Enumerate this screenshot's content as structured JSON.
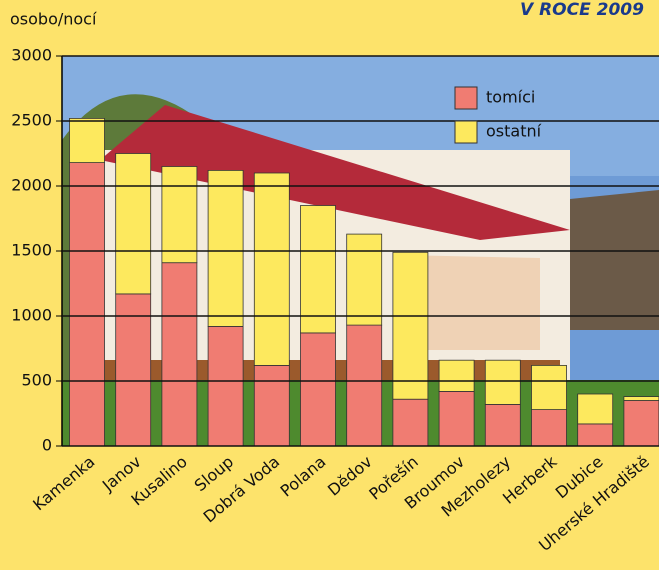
{
  "chart_data": {
    "type": "stacked-bar",
    "title": "V ROCE 2009",
    "y_label": "osobo/nocí",
    "categories": [
      "Kamenka",
      "Janov",
      "Kusalino",
      "Sloup",
      "Dobrá Voda",
      "Polana",
      "Dědov",
      "Pořešín",
      "Broumov",
      "Mezholezy",
      "Herberk",
      "Dubice",
      "Uherské Hradiště"
    ],
    "series": [
      {
        "name": "tomíci",
        "color": "#f07c72",
        "values": [
          2180,
          1170,
          1410,
          920,
          620,
          870,
          930,
          360,
          420,
          320,
          280,
          170,
          350
        ]
      },
      {
        "name": "ostatní",
        "color": "#fde95e",
        "values": [
          340,
          1080,
          740,
          1200,
          1480,
          980,
          700,
          1130,
          240,
          340,
          340,
          230,
          30
        ]
      }
    ],
    "ylim": [
      0,
      3000
    ],
    "yticks": [
      0,
      500,
      1000,
      1500,
      2000,
      2500,
      3000
    ],
    "grid": true
  }
}
